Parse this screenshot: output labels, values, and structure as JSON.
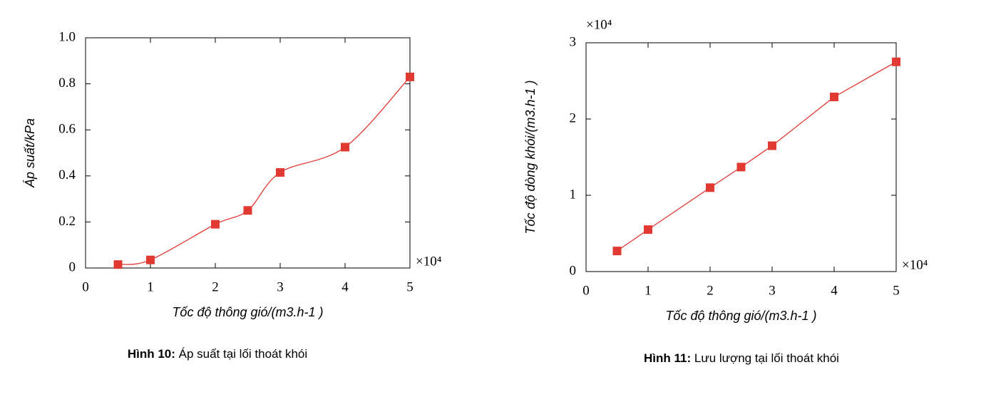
{
  "charts": [
    {
      "chart_data": {
        "type": "line",
        "x_label": "Tốc độ thông gió/(m3.h-1 )",
        "y_label": "Áp suất/kPa",
        "x_multiplier": "×10⁴",
        "x": [
          0.5,
          1,
          2,
          2.5,
          3,
          4,
          5
        ],
        "series": [
          {
            "color": "#e03a33",
            "values": [
              0.015,
              0.035,
              0.19,
              0.25,
              0.415,
              0.525,
              0.83
            ]
          }
        ],
        "xlim": [
          0,
          5
        ],
        "xticks": [
          0,
          1,
          2,
          3,
          4,
          5
        ],
        "ylim": [
          0,
          1
        ],
        "yticks": [
          0,
          0.2,
          0.4,
          0.6,
          0.8,
          {
            "value": 1,
            "label": "1.0"
          }
        ],
        "smooth": true
      },
      "caption_label": "Hình 10:",
      "caption": " Áp suất tại lối thoát khói"
    },
    {
      "chart_data": {
        "type": "line",
        "x_label": "Tốc độ thông gió/(m3.h-1 )",
        "y_label": "Tốc độ dòng khói/(m3.h-1 )",
        "x_multiplier": "×10⁴",
        "y_multiplier": "×10⁴",
        "x": [
          0.5,
          1,
          2,
          2.5,
          3,
          4,
          5
        ],
        "series": [
          {
            "color": "#e03a33",
            "values": [
              0.27,
              0.55,
              1.1,
              1.37,
              1.65,
              2.29,
              2.75
            ]
          }
        ],
        "xlim": [
          0,
          5
        ],
        "xticks": [
          0,
          1,
          2,
          3,
          4,
          5
        ],
        "ylim": [
          0,
          3
        ],
        "yticks": [
          0,
          1,
          2,
          3
        ],
        "smooth": false
      },
      "caption_label": "Hình 11:",
      "caption": " Lưu lượng tại lối thoát khói"
    }
  ]
}
